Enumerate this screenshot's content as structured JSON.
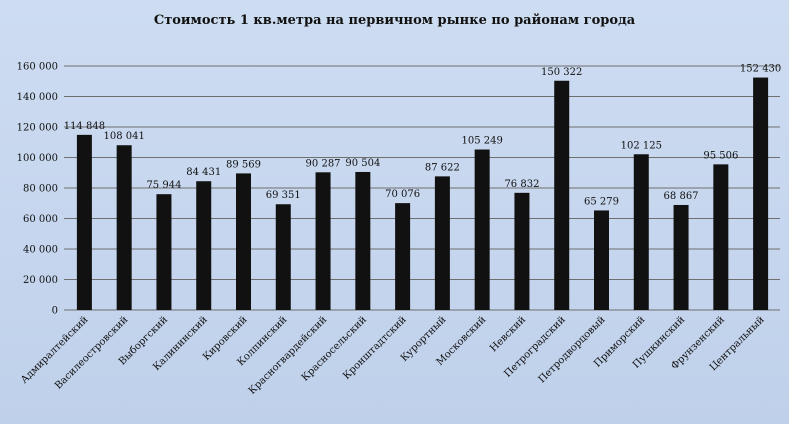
{
  "chart_data": {
    "type": "bar",
    "title": "Стоимость 1 кв.метра на первичном  рынке по районам  города",
    "xlabel": "",
    "ylabel": "",
    "ylim": [
      0,
      160000
    ],
    "yticks": [
      "0",
      "20 000",
      "40 000",
      "60 000",
      "80 000",
      "100 000",
      "120 000",
      "140 000",
      "160 000"
    ],
    "grid": true,
    "bar_color": "#111111",
    "categories": [
      "Адмиралтейский",
      "Василеостровский",
      "Выборгский",
      "Калининский",
      "Кировский",
      "Колпинский",
      "Красногвардейский",
      "Красносельский",
      "Кронштадтский",
      "Курортный",
      "Московский",
      "Невский",
      "Петроградский",
      "Петродворцовый",
      "Приморский",
      "Пушкинский",
      "Фрунзенский",
      "Центральный"
    ],
    "values": [
      114848,
      108041,
      75944,
      84431,
      89569,
      69351,
      90287,
      90504,
      70076,
      87622,
      105249,
      76832,
      150322,
      65279,
      102125,
      68867,
      95506,
      152430
    ],
    "value_labels": [
      "114 848",
      "108 041",
      "75 944",
      "84 431",
      "89 569",
      "69 351",
      "90 287",
      "90 504",
      "70 076",
      "87 622",
      "105 249",
      "76 832",
      "150 322",
      "65 279",
      "102 125",
      "68 867",
      "95 506",
      "152 430"
    ]
  }
}
